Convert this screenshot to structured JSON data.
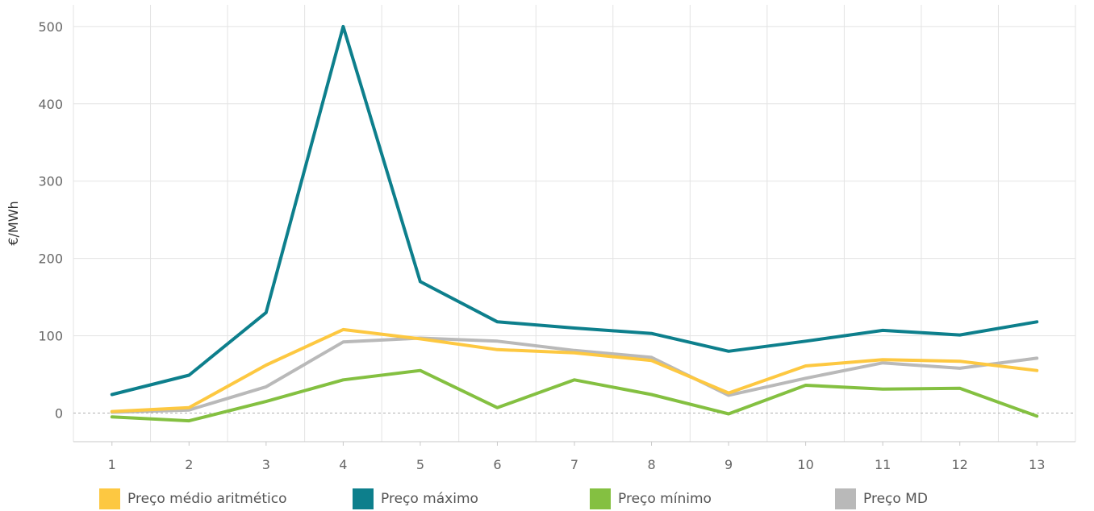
{
  "chart_data": {
    "type": "line",
    "title": "",
    "xlabel": "",
    "ylabel": "€/MWh",
    "x": [
      1,
      2,
      3,
      4,
      5,
      6,
      7,
      8,
      9,
      10,
      11,
      12,
      13
    ],
    "xlim": [
      0.5,
      13.5
    ],
    "ylim": [
      -37,
      528
    ],
    "yticks": [
      0,
      100,
      200,
      300,
      400,
      500
    ],
    "grid": true,
    "zero_line": "dotted",
    "legend_position": "bottom",
    "series": [
      {
        "name": "Preço máximo",
        "color": "#0d7f8c",
        "values": [
          24,
          49,
          130,
          500,
          170,
          118,
          110,
          103,
          80,
          93,
          107,
          101,
          118
        ]
      },
      {
        "name": "Preço MD",
        "color": "#b9b9b9",
        "values": [
          1,
          4,
          34,
          92,
          97,
          93,
          81,
          72,
          23,
          45,
          65,
          58,
          71
        ]
      },
      {
        "name": "Preço médio aritmético",
        "color": "#fdc841",
        "values": [
          2,
          7,
          62,
          108,
          96,
          82,
          78,
          68,
          26,
          61,
          69,
          67,
          55
        ]
      },
      {
        "name": "Preço mínimo",
        "color": "#84c041",
        "values": [
          -5,
          -10,
          15,
          43,
          55,
          7,
          43,
          24,
          -1,
          36,
          31,
          32,
          -4
        ]
      }
    ],
    "legend": [
      {
        "label": "Preço médio aritmético",
        "color": "#fdc841"
      },
      {
        "label": "Preço máximo",
        "color": "#0d7f8c"
      },
      {
        "label": "Preço mínimo",
        "color": "#84c041"
      },
      {
        "label": "Preço MD",
        "color": "#b9b9b9"
      }
    ]
  }
}
